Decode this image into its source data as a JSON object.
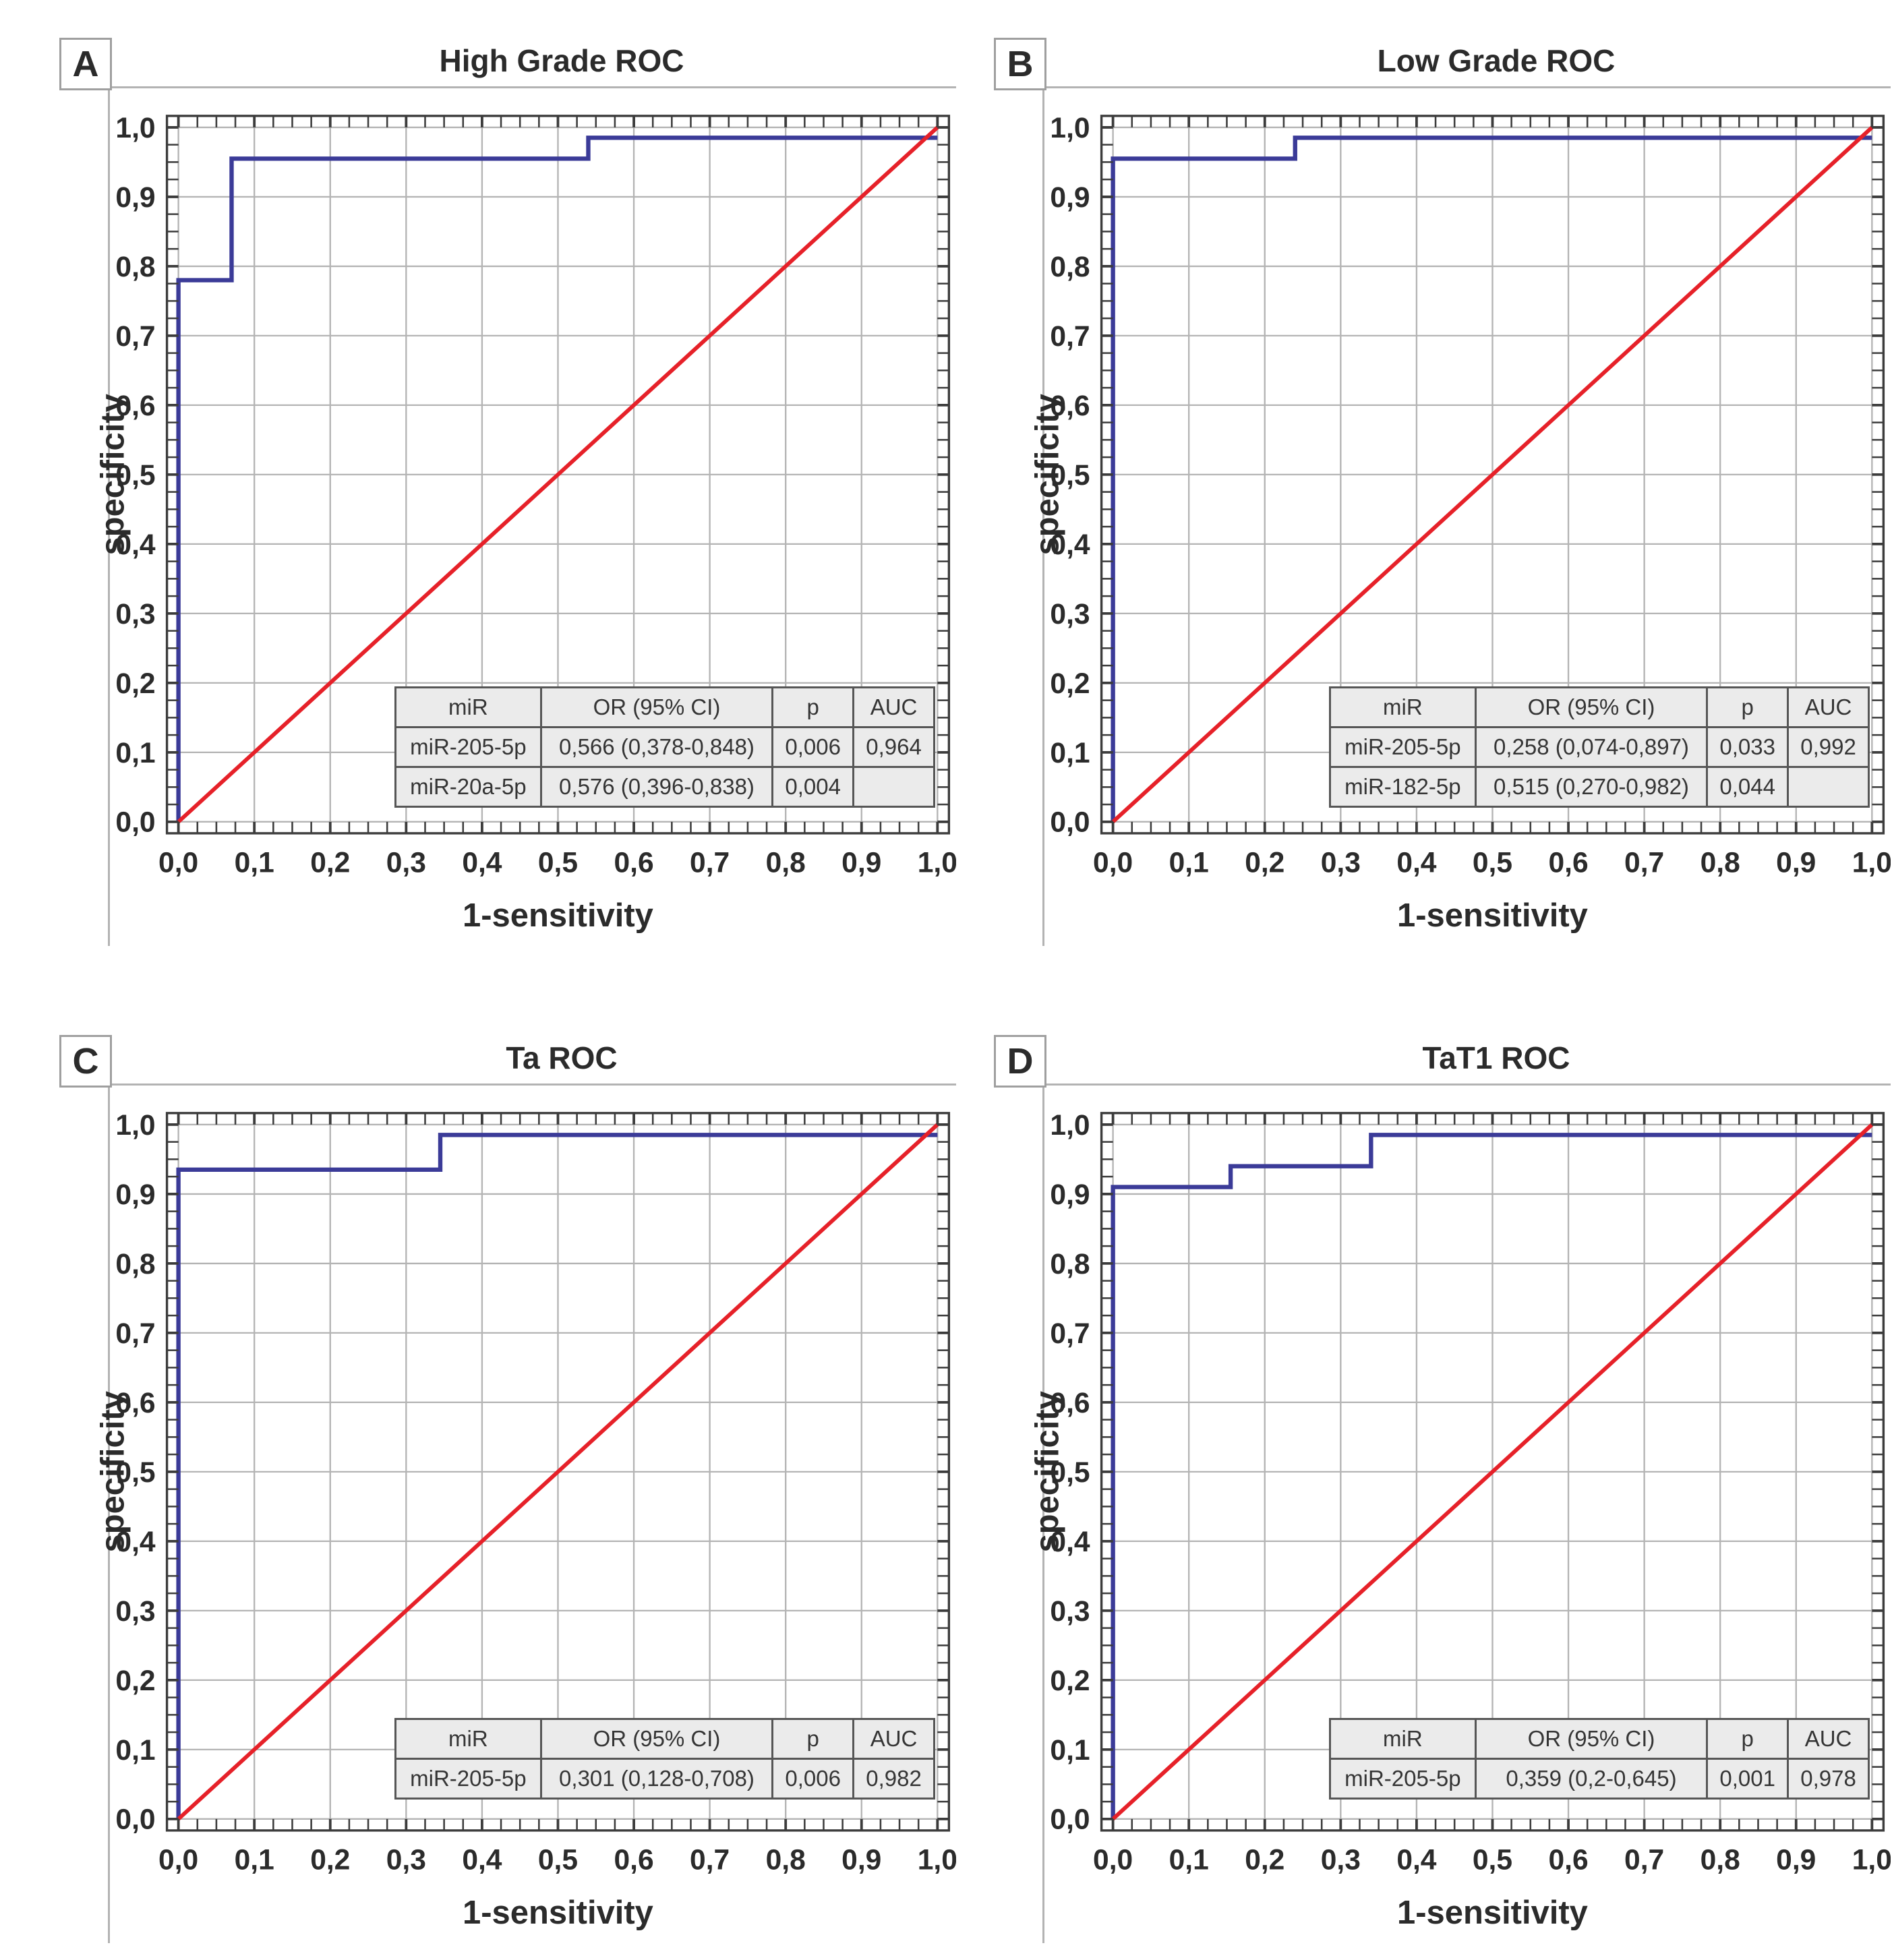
{
  "colors": {
    "roc_curve": "#3b3b98",
    "reference_line": "#e62129",
    "grid_line": "#b4b4b4",
    "frame": "#3c3c3c",
    "panel_rule": "#b3b3b3",
    "table_bg": "#ebebeb",
    "table_border": "#565656",
    "text": "#2b2b2b"
  },
  "axis": {
    "tick_labels": [
      "0,0",
      "0,1",
      "0,2",
      "0,3",
      "0,4",
      "0,5",
      "0,6",
      "0,7",
      "0,8",
      "0,9",
      "1,0"
    ],
    "minor_tick_step": 0.025,
    "range": [
      0,
      1
    ]
  },
  "panels": [
    {
      "label": "A",
      "title": "High Grade ROC",
      "xlabel": "1-sensitivity",
      "ylabel": "specificity",
      "table": {
        "headers": [
          "miR",
          "OR (95% CI)",
          "p",
          "AUC"
        ],
        "rows": [
          [
            "miR-205-5p",
            "0,566 (0,378-0,848)",
            "0,006",
            "0,964"
          ],
          [
            "miR-20a-5p",
            "0,576 (0,396-0,838)",
            "0,004",
            ""
          ]
        ]
      }
    },
    {
      "label": "B",
      "title": "Low Grade ROC",
      "xlabel": "1-sensitivity",
      "ylabel": "specificity",
      "table": {
        "headers": [
          "miR",
          "OR (95% CI)",
          "p",
          "AUC"
        ],
        "rows": [
          [
            "miR-205-5p",
            "0,258 (0,074-0,897)",
            "0,033",
            "0,992"
          ],
          [
            "miR-182-5p",
            "0,515 (0,270-0,982)",
            "0,044",
            ""
          ]
        ]
      }
    },
    {
      "label": "C",
      "title": "Ta ROC",
      "xlabel": "1-sensitivity",
      "ylabel": "specificity",
      "table": {
        "headers": [
          "miR",
          "OR (95% CI)",
          "p",
          "AUC"
        ],
        "rows": [
          [
            "miR-205-5p",
            "0,301 (0,128-0,708)",
            "0,006",
            "0,982"
          ]
        ]
      }
    },
    {
      "label": "D",
      "title": "TaT1 ROC",
      "xlabel": "1-sensitivity",
      "ylabel": "specificity",
      "table": {
        "headers": [
          "miR",
          "OR (95% CI)",
          "p",
          "AUC"
        ],
        "rows": [
          [
            "miR-205-5p",
            "0,359 (0,2-0,645)",
            "0,001",
            "0,978"
          ]
        ]
      }
    }
  ],
  "chart_data": [
    {
      "type": "line",
      "title": "High Grade ROC",
      "xlabel": "1-sensitivity",
      "ylabel": "specificity",
      "xlim": [
        0,
        1
      ],
      "ylim": [
        0,
        1
      ],
      "grid": true,
      "auc": 0.964,
      "series": [
        {
          "name": "ROC curve",
          "color_key": "roc_curve",
          "width": 6,
          "points": [
            [
              0,
              0
            ],
            [
              0,
              0.78
            ],
            [
              0.07,
              0.78
            ],
            [
              0.07,
              0.955
            ],
            [
              0.54,
              0.955
            ],
            [
              0.54,
              0.985
            ],
            [
              1,
              0.985
            ]
          ]
        },
        {
          "name": "reference diagonal",
          "color_key": "reference_line",
          "width": 5.5,
          "points": [
            [
              0,
              0
            ],
            [
              1,
              1
            ]
          ]
        }
      ]
    },
    {
      "type": "line",
      "title": "Low Grade ROC",
      "xlabel": "1-sensitivity",
      "ylabel": "specificity",
      "xlim": [
        0,
        1
      ],
      "ylim": [
        0,
        1
      ],
      "grid": true,
      "auc": 0.992,
      "series": [
        {
          "name": "ROC curve",
          "color_key": "roc_curve",
          "width": 6,
          "points": [
            [
              0,
              0
            ],
            [
              0,
              0.955
            ],
            [
              0.24,
              0.955
            ],
            [
              0.24,
              0.985
            ],
            [
              1,
              0.985
            ]
          ]
        },
        {
          "name": "reference diagonal",
          "color_key": "reference_line",
          "width": 5.5,
          "points": [
            [
              0,
              0
            ],
            [
              1,
              1
            ]
          ]
        }
      ]
    },
    {
      "type": "line",
      "title": "Ta ROC",
      "xlabel": "1-sensitivity",
      "ylabel": "specificity",
      "xlim": [
        0,
        1
      ],
      "ylim": [
        0,
        1
      ],
      "grid": true,
      "auc": 0.982,
      "series": [
        {
          "name": "ROC curve",
          "color_key": "roc_curve",
          "width": 6,
          "points": [
            [
              0,
              0
            ],
            [
              0,
              0.935
            ],
            [
              0.345,
              0.935
            ],
            [
              0.345,
              0.985
            ],
            [
              1,
              0.985
            ]
          ]
        },
        {
          "name": "reference diagonal",
          "color_key": "reference_line",
          "width": 5.5,
          "points": [
            [
              0,
              0
            ],
            [
              1,
              1
            ]
          ]
        }
      ]
    },
    {
      "type": "line",
      "title": "TaT1 ROC",
      "xlabel": "1-sensitivity",
      "ylabel": "specificity",
      "xlim": [
        0,
        1
      ],
      "ylim": [
        0,
        1
      ],
      "grid": true,
      "auc": 0.978,
      "series": [
        {
          "name": "ROC curve",
          "color_key": "roc_curve",
          "width": 6,
          "points": [
            [
              0,
              0
            ],
            [
              0,
              0.91
            ],
            [
              0.155,
              0.91
            ],
            [
              0.155,
              0.94
            ],
            [
              0.34,
              0.94
            ],
            [
              0.34,
              0.985
            ],
            [
              1,
              0.985
            ]
          ]
        },
        {
          "name": "reference diagonal",
          "color_key": "reference_line",
          "width": 5.5,
          "points": [
            [
              0,
              0
            ],
            [
              1,
              1
            ]
          ]
        }
      ]
    }
  ]
}
